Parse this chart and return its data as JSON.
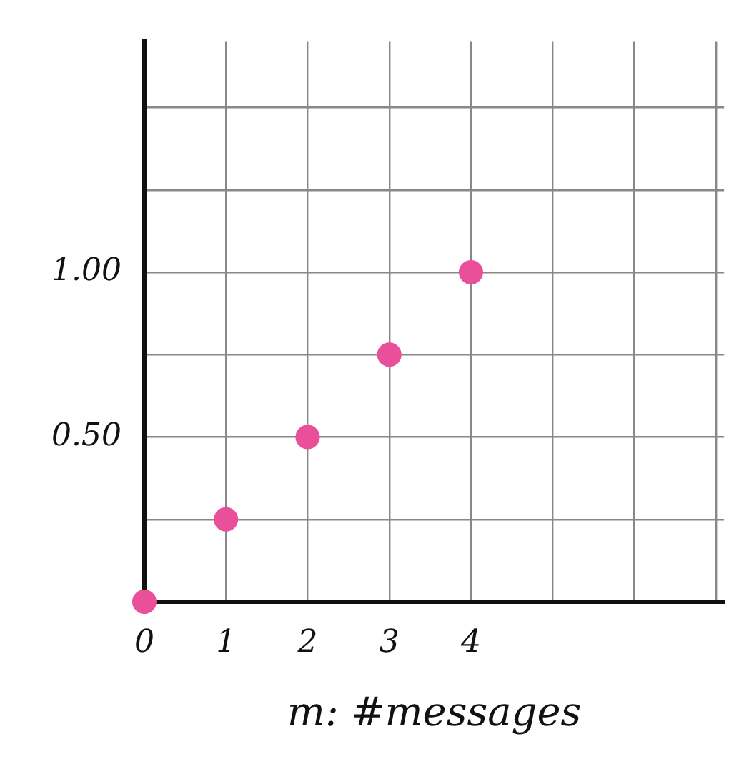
{
  "chart_data": {
    "type": "scatter",
    "xlabel": "m: #messages",
    "x": [
      0,
      1,
      2,
      3,
      4
    ],
    "series": [
      {
        "color": "#ea4f9a",
        "values": [
          0,
          0.25,
          0.5,
          0.75,
          1.0
        ]
      }
    ],
    "xlim": [
      0,
      7.1
    ],
    "ylim": [
      0,
      1.7
    ],
    "xticks": [
      0,
      1,
      2,
      3,
      4,
      {
        "value": 5,
        "label": null
      },
      {
        "value": 6,
        "label": null
      },
      {
        "value": 7,
        "label": null
      }
    ],
    "yticks": [
      {
        "value": 0,
        "label": null
      },
      {
        "value": 0.25,
        "label": null
      },
      {
        "value": 0.5,
        "label": "0.50"
      },
      {
        "value": 0.75,
        "label": null
      },
      {
        "value": 1,
        "label": "1.00"
      },
      {
        "value": 1.25,
        "label": null
      },
      {
        "value": 1.5,
        "label": null
      }
    ],
    "grid": true,
    "marker": "circle"
  }
}
